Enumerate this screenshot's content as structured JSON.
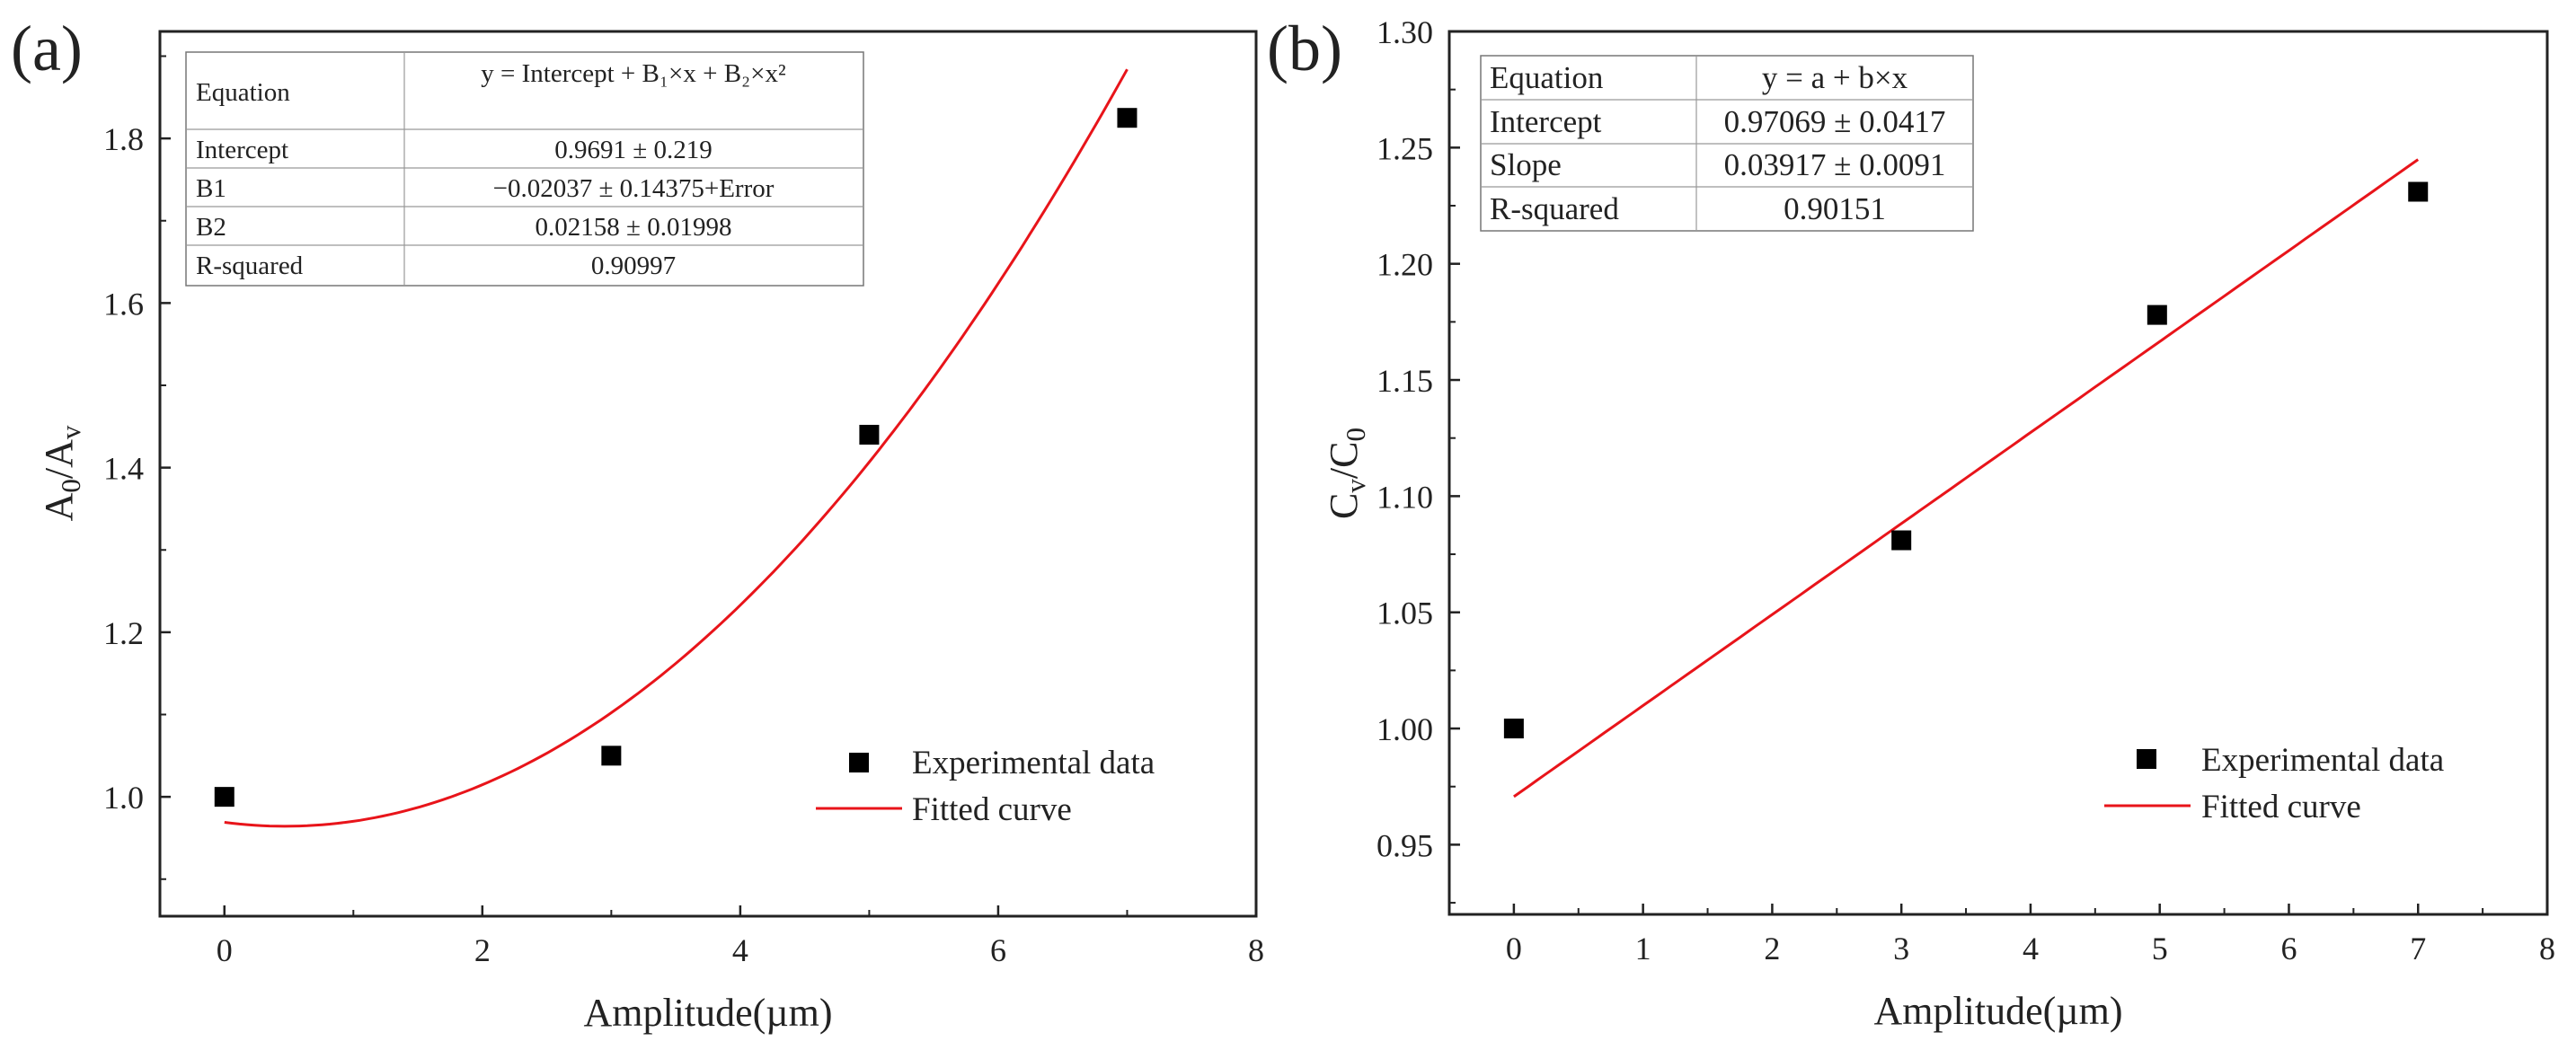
{
  "chart_data": [
    {
      "type": "scatter",
      "panel_label": "(a)",
      "xlabel": "Amplitude(µm)",
      "ylabel_main": "A",
      "ylabel_sub1": "0",
      "ylabel_mid": "/A",
      "ylabel_sub2": "v",
      "xlim": [
        -0.5,
        8
      ],
      "ylim": [
        0.855,
        1.93
      ],
      "xticks": [
        0,
        2,
        4,
        6,
        8
      ],
      "xtick_labels": [
        "0",
        "2",
        "4",
        "6",
        "8"
      ],
      "yticks": [
        1.0,
        1.2,
        1.4,
        1.6,
        1.8
      ],
      "ytick_labels": [
        "1.0",
        "1.2",
        "1.4",
        "1.6",
        "1.8"
      ],
      "grid": false,
      "series": [
        {
          "name": "Experimental data",
          "kind": "points",
          "x": [
            0,
            3,
            5,
            7
          ],
          "y": [
            1.0,
            1.05,
            1.44,
            1.825
          ],
          "color": "#000000"
        },
        {
          "name": "Fitted curve",
          "kind": "quadratic",
          "coeffs": [
            0.9691,
            -0.02037,
            0.02158
          ],
          "x_range": [
            0,
            7
          ],
          "color": "#e8141a"
        }
      ],
      "legend_position": "bottom-right",
      "fit_table": {
        "rows": [
          [
            "Equation",
            "y = Intercept + B₁×x + B₂×x²"
          ],
          [
            "Intercept",
            "0.9691 ± 0.219"
          ],
          [
            "B1",
            "−0.02037 ± 0.14375+Error"
          ],
          [
            "B2",
            "0.02158 ± 0.01998"
          ],
          [
            "R-squared",
            "0.90997"
          ]
        ]
      }
    },
    {
      "type": "scatter",
      "panel_label": "(b)",
      "xlabel": "Amplitude(µm)",
      "ylabel_main": "C",
      "ylabel_sub1": "v",
      "ylabel_mid": "/C",
      "ylabel_sub2": "0",
      "xlim": [
        -0.5,
        8
      ],
      "ylim": [
        0.92,
        1.3
      ],
      "xticks": [
        0,
        1,
        2,
        3,
        4,
        5,
        6,
        7,
        8
      ],
      "xtick_labels": [
        "0",
        "1",
        "2",
        "3",
        "4",
        "5",
        "6",
        "7",
        "8"
      ],
      "yticks": [
        0.95,
        1.0,
        1.05,
        1.1,
        1.15,
        1.2,
        1.25,
        1.3
      ],
      "ytick_labels": [
        "0.95",
        "1.00",
        "1.05",
        "1.10",
        "1.15",
        "1.20",
        "1.25",
        "1.30"
      ],
      "grid": false,
      "series": [
        {
          "name": "Experimental data",
          "kind": "points",
          "x": [
            0,
            3,
            4.98,
            7
          ],
          "y": [
            1.0,
            1.081,
            1.178,
            1.231
          ],
          "color": "#000000"
        },
        {
          "name": "Fitted curve",
          "kind": "linear",
          "coeffs": [
            0.97069,
            0.03917
          ],
          "x_range": [
            0,
            7
          ],
          "color": "#e8141a"
        }
      ],
      "legend_position": "bottom-right",
      "fit_table": {
        "rows": [
          [
            "Equation",
            "y = a + b×x"
          ],
          [
            "Intercept",
            "0.97069 ± 0.0417"
          ],
          [
            "Slope",
            "0.03917 ± 0.0091"
          ],
          [
            "R-squared",
            "0.90151"
          ]
        ]
      }
    }
  ]
}
